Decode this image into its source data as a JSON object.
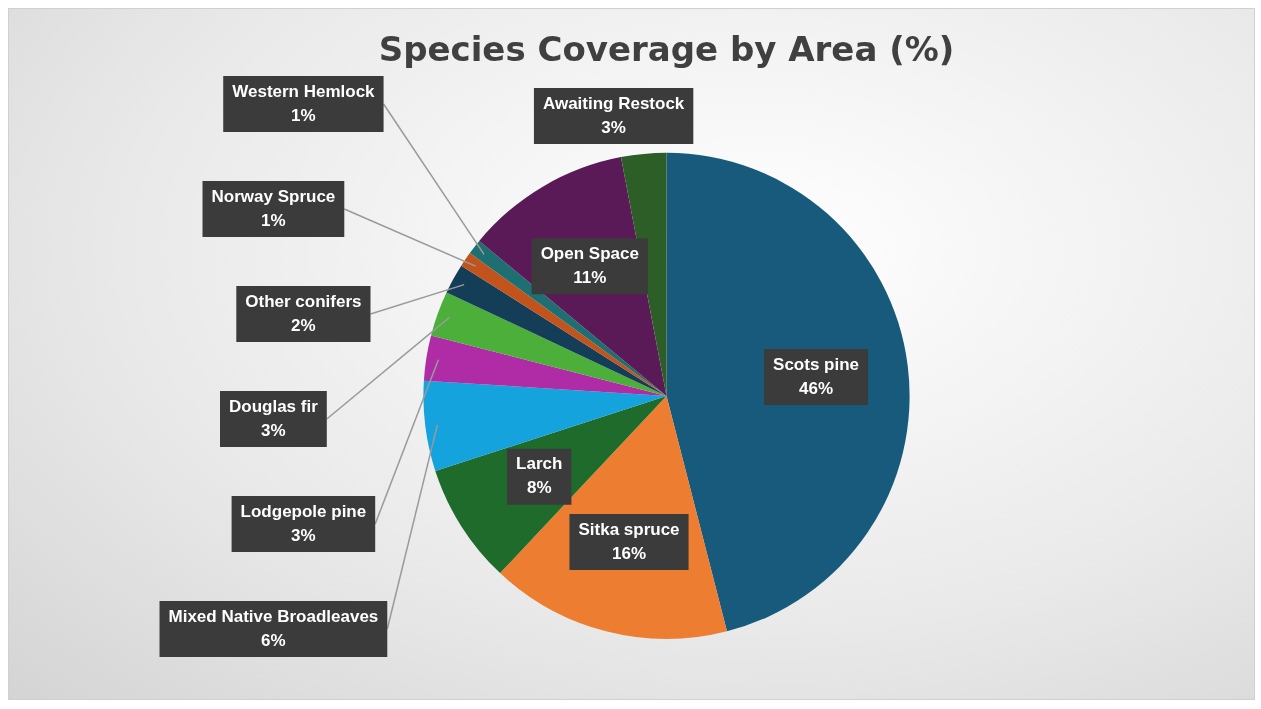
{
  "chart_data": {
    "type": "pie",
    "title": "Species Coverage by Area (%)",
    "categories": [
      "Scots pine",
      "Sitka spruce",
      "Larch",
      "Mixed Native Broadleaves",
      "Lodgepole pine",
      "Douglas fir",
      "Other conifers",
      "Norway Spruce",
      "Western Hemlock",
      "Open Space",
      "Awaiting Restock"
    ],
    "values": [
      46,
      16,
      8,
      6,
      3,
      3,
      2,
      1,
      1,
      11,
      3
    ],
    "value_labels": [
      "46%",
      "16%",
      "8%",
      "6%",
      "3%",
      "3%",
      "2%",
      "1%",
      "1%",
      "11%",
      "3%"
    ],
    "colors": [
      "#175a7c",
      "#ed7d31",
      "#1f6b2c",
      "#14a3dc",
      "#b02ca6",
      "#4caf3a",
      "#143e57",
      "#c2531c",
      "#1d6f72",
      "#5a1a58",
      "#2e5e27"
    ]
  }
}
